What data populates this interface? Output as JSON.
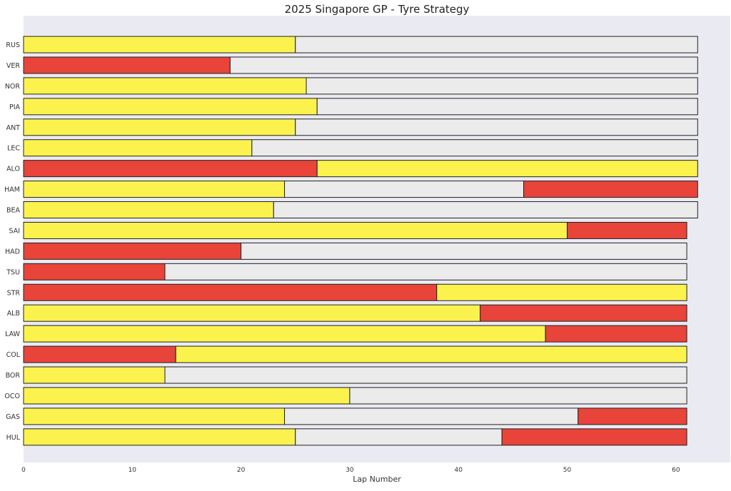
{
  "chart_data": {
    "type": "bar",
    "orientation": "horizontal-stacked",
    "title": "2025 Singapore GP - Tyre Strategy",
    "xlabel": "Lap Number",
    "ylabel": "",
    "xlim": [
      0,
      65
    ],
    "xticks": [
      0,
      10,
      20,
      30,
      40,
      50,
      60
    ],
    "grid": false,
    "colors": {
      "plot_background": "#eaeaf2",
      "SOFT": "#e8443a",
      "MEDIUM": "#fbf24d",
      "HARD": "#ebebeb",
      "bar_edge": "#222222"
    },
    "drivers": [
      {
        "driver": "RUS",
        "stints": [
          {
            "compound": "MEDIUM",
            "start": 0,
            "end": 25
          },
          {
            "compound": "HARD",
            "start": 25,
            "end": 62
          }
        ]
      },
      {
        "driver": "VER",
        "stints": [
          {
            "compound": "SOFT",
            "start": 0,
            "end": 19
          },
          {
            "compound": "HARD",
            "start": 19,
            "end": 62
          }
        ]
      },
      {
        "driver": "NOR",
        "stints": [
          {
            "compound": "MEDIUM",
            "start": 0,
            "end": 26
          },
          {
            "compound": "HARD",
            "start": 26,
            "end": 62
          }
        ]
      },
      {
        "driver": "PIA",
        "stints": [
          {
            "compound": "MEDIUM",
            "start": 0,
            "end": 27
          },
          {
            "compound": "HARD",
            "start": 27,
            "end": 62
          }
        ]
      },
      {
        "driver": "ANT",
        "stints": [
          {
            "compound": "MEDIUM",
            "start": 0,
            "end": 25
          },
          {
            "compound": "HARD",
            "start": 25,
            "end": 62
          }
        ]
      },
      {
        "driver": "LEC",
        "stints": [
          {
            "compound": "MEDIUM",
            "start": 0,
            "end": 21
          },
          {
            "compound": "HARD",
            "start": 21,
            "end": 62
          }
        ]
      },
      {
        "driver": "ALO",
        "stints": [
          {
            "compound": "SOFT",
            "start": 0,
            "end": 27
          },
          {
            "compound": "MEDIUM",
            "start": 27,
            "end": 62
          }
        ]
      },
      {
        "driver": "HAM",
        "stints": [
          {
            "compound": "MEDIUM",
            "start": 0,
            "end": 24
          },
          {
            "compound": "HARD",
            "start": 24,
            "end": 46
          },
          {
            "compound": "SOFT",
            "start": 46,
            "end": 62
          }
        ]
      },
      {
        "driver": "BEA",
        "stints": [
          {
            "compound": "MEDIUM",
            "start": 0,
            "end": 23
          },
          {
            "compound": "HARD",
            "start": 23,
            "end": 62
          }
        ]
      },
      {
        "driver": "SAI",
        "stints": [
          {
            "compound": "MEDIUM",
            "start": 0,
            "end": 50
          },
          {
            "compound": "SOFT",
            "start": 50,
            "end": 61
          }
        ]
      },
      {
        "driver": "HAD",
        "stints": [
          {
            "compound": "SOFT",
            "start": 0,
            "end": 20
          },
          {
            "compound": "HARD",
            "start": 20,
            "end": 61
          }
        ]
      },
      {
        "driver": "TSU",
        "stints": [
          {
            "compound": "SOFT",
            "start": 0,
            "end": 13
          },
          {
            "compound": "HARD",
            "start": 13,
            "end": 61
          }
        ]
      },
      {
        "driver": "STR",
        "stints": [
          {
            "compound": "SOFT",
            "start": 0,
            "end": 38
          },
          {
            "compound": "MEDIUM",
            "start": 38,
            "end": 61
          }
        ]
      },
      {
        "driver": "ALB",
        "stints": [
          {
            "compound": "MEDIUM",
            "start": 0,
            "end": 42
          },
          {
            "compound": "SOFT",
            "start": 42,
            "end": 61
          }
        ]
      },
      {
        "driver": "LAW",
        "stints": [
          {
            "compound": "MEDIUM",
            "start": 0,
            "end": 48
          },
          {
            "compound": "SOFT",
            "start": 48,
            "end": 61
          }
        ]
      },
      {
        "driver": "COL",
        "stints": [
          {
            "compound": "SOFT",
            "start": 0,
            "end": 14
          },
          {
            "compound": "MEDIUM",
            "start": 14,
            "end": 61
          }
        ]
      },
      {
        "driver": "BOR",
        "stints": [
          {
            "compound": "MEDIUM",
            "start": 0,
            "end": 13
          },
          {
            "compound": "HARD",
            "start": 13,
            "end": 61
          }
        ]
      },
      {
        "driver": "OCO",
        "stints": [
          {
            "compound": "MEDIUM",
            "start": 0,
            "end": 30
          },
          {
            "compound": "HARD",
            "start": 30,
            "end": 61
          }
        ]
      },
      {
        "driver": "GAS",
        "stints": [
          {
            "compound": "MEDIUM",
            "start": 0,
            "end": 24
          },
          {
            "compound": "HARD",
            "start": 24,
            "end": 51
          },
          {
            "compound": "SOFT",
            "start": 51,
            "end": 61
          }
        ]
      },
      {
        "driver": "HUL",
        "stints": [
          {
            "compound": "MEDIUM",
            "start": 0,
            "end": 25
          },
          {
            "compound": "HARD",
            "start": 25,
            "end": 44
          },
          {
            "compound": "SOFT",
            "start": 44,
            "end": 61
          }
        ]
      }
    ]
  }
}
